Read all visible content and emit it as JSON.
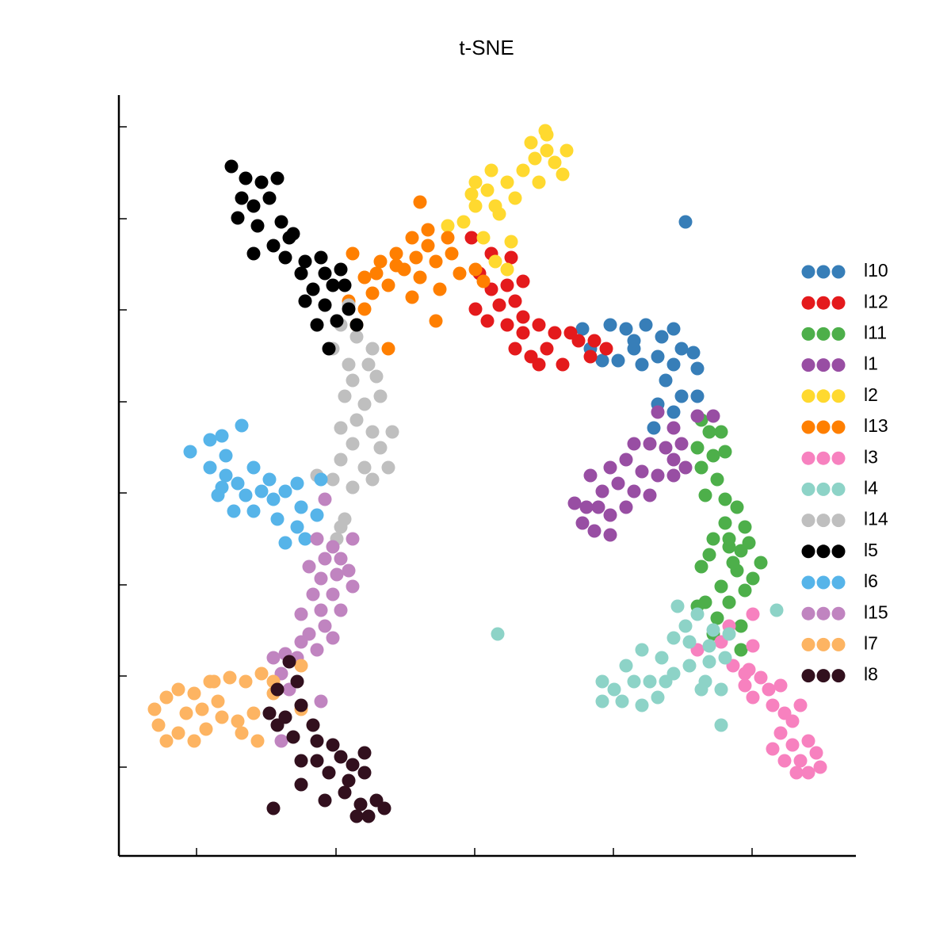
{
  "chart_data": {
    "type": "scatter",
    "title": "t-SNE",
    "xlim": [
      150,
      1080
    ],
    "ylim": [
      120,
      1080
    ],
    "xticks": [
      248,
      424,
      599,
      774,
      949
    ],
    "yticks": [
      232,
      347,
      462,
      578,
      693,
      809,
      924,
      1040
    ],
    "legend": "right",
    "series": [
      {
        "name": "l10",
        "color": "#377eb8",
        "x": [
          735,
          770,
          790,
          815,
          850,
          835,
          800,
          780,
          760,
          830,
          850,
          860,
          875,
          880,
          840,
          860,
          880,
          850,
          830,
          865,
          825,
          800,
          745,
          810
        ],
        "y": [
          785,
          790,
          785,
          790,
          785,
          775,
          760,
          745,
          745,
          750,
          740,
          760,
          755,
          735,
          720,
          700,
          700,
          680,
          690,
          920,
          660,
          770,
          760,
          740
        ]
      },
      {
        "name": "l12",
        "color": "#e41a1c",
        "x": [
          595,
          620,
          645,
          605,
          620,
          640,
          660,
          630,
          615,
          640,
          660,
          680,
          700,
          720,
          690,
          710,
          730,
          750,
          745,
          650,
          670,
          600,
          650,
          680,
          765,
          660
        ],
        "y": [
          900,
          880,
          875,
          855,
          835,
          840,
          845,
          815,
          795,
          790,
          800,
          790,
          780,
          780,
          760,
          740,
          770,
          770,
          750,
          760,
          750,
          810,
          820,
          740,
          760,
          780
        ]
      },
      {
        "name": "l11",
        "color": "#4daf4a",
        "x": [
          885,
          895,
          910,
          880,
          900,
          915,
          885,
          905,
          890,
          915,
          930,
          915,
          940,
          900,
          920,
          935,
          960,
          895,
          930,
          950,
          885,
          910,
          940,
          890,
          920,
          880,
          905,
          935,
          900,
          935,
          920,
          945,
          925
        ],
        "y": [
          670,
          655,
          655,
          635,
          625,
          630,
          610,
          595,
          575,
          570,
          560,
          540,
          535,
          520,
          510,
          505,
          490,
          500,
          480,
          470,
          485,
          460,
          455,
          440,
          440,
          435,
          420,
          410,
          400,
          380,
          520,
          515,
          490
        ]
      },
      {
        "name": "l1",
        "color": "#984ea3",
        "x": [
          830,
          850,
          880,
          900,
          860,
          840,
          820,
          800,
          790,
          770,
          745,
          760,
          740,
          725,
          735,
          750,
          770,
          770,
          790,
          800,
          820,
          830,
          850,
          865,
          780,
          755,
          810,
          850
        ],
        "y": [
          680,
          660,
          675,
          675,
          640,
          635,
          640,
          640,
          620,
          610,
          600,
          580,
          560,
          565,
          540,
          530,
          525,
          550,
          560,
          580,
          575,
          600,
          600,
          610,
          590,
          560,
          605,
          620
        ]
      },
      {
        "name": "l2",
        "color": "#ffd92f",
        "x": [
          565,
          585,
          600,
          595,
          615,
          620,
          640,
          660,
          675,
          690,
          700,
          715,
          690,
          670,
          650,
          630,
          645,
          610,
          625,
          640,
          710,
          600,
          625,
          680,
          688
        ],
        "y": [
          915,
          920,
          940,
          955,
          960,
          985,
          970,
          985,
          1000,
          1010,
          995,
          1010,
          1030,
          1020,
          950,
          930,
          895,
          900,
          870,
          860,
          980,
          970,
          940,
          970,
          1035
        ]
      },
      {
        "name": "l13",
        "color": "#ff7f00",
        "x": [
          445,
          460,
          480,
          500,
          520,
          540,
          530,
          510,
          530,
          550,
          570,
          555,
          520,
          490,
          470,
          460,
          450,
          490,
          550,
          580,
          600,
          610,
          500,
          540,
          565,
          440,
          475,
          525
        ],
        "y": [
          880,
          850,
          870,
          880,
          900,
          890,
          945,
          860,
          850,
          870,
          880,
          835,
          825,
          840,
          830,
          810,
          790,
          760,
          795,
          855,
          860,
          845,
          865,
          910,
          900,
          820,
          855,
          875
        ]
      },
      {
        "name": "l3",
        "color": "#f781bf",
        "x": [
          950,
          920,
          910,
          950,
          925,
          945,
          960,
          970,
          985,
          950,
          940,
          975,
          990,
          1010,
          1000,
          985,
          1000,
          1020,
          1030,
          1010,
          990,
          975,
          1035,
          1005,
          1020,
          880,
          940
        ],
        "y": [
          425,
          410,
          390,
          385,
          360,
          355,
          345,
          330,
          335,
          320,
          350,
          310,
          300,
          310,
          290,
          275,
          260,
          265,
          250,
          240,
          240,
          255,
          232,
          225,
          225,
          380,
          335
        ]
      },
      {
        "name": "l4",
        "color": "#8dd3c7",
        "x": [
          855,
          880,
          865,
          900,
          920,
          850,
          870,
          895,
          915,
          810,
          835,
          790,
          800,
          760,
          775,
          760,
          785,
          810,
          830,
          840,
          870,
          890,
          910,
          885,
          980,
          910,
          628,
          895,
          820,
          850
        ],
        "y": [
          435,
          425,
          410,
          405,
          400,
          395,
          390,
          385,
          370,
          380,
          370,
          360,
          340,
          340,
          330,
          315,
          315,
          310,
          320,
          340,
          360,
          340,
          330,
          330,
          430,
          285,
          400,
          365,
          340,
          350
        ]
      },
      {
        "name": "l14",
        "color": "#bfbfbf",
        "x": [
          440,
          430,
          450,
          470,
          420,
          440,
          465,
          445,
          475,
          435,
          460,
          480,
          450,
          430,
          470,
          495,
          445,
          480,
          430,
          460,
          490,
          420,
          445,
          470,
          400,
          435,
          430,
          425
        ],
        "y": [
          815,
          790,
          775,
          760,
          760,
          740,
          740,
          720,
          725,
          700,
          690,
          700,
          670,
          660,
          655,
          655,
          640,
          635,
          620,
          610,
          610,
          595,
          585,
          595,
          600,
          545,
          535,
          520
        ]
      },
      {
        "name": "l5",
        "color": "#000000",
        "x": [
          292,
          310,
          330,
          350,
          305,
          320,
          340,
          300,
          325,
          355,
          370,
          345,
          320,
          360,
          385,
          405,
          380,
          410,
          430,
          395,
          420,
          385,
          410,
          440,
          400,
          425,
          450,
          415,
          435,
          365
        ],
        "y": [
          990,
          975,
          970,
          975,
          950,
          940,
          950,
          925,
          915,
          920,
          905,
          890,
          880,
          875,
          870,
          875,
          855,
          855,
          860,
          835,
          840,
          820,
          815,
          810,
          790,
          795,
          790,
          760,
          840,
          900
        ]
      },
      {
        "name": "l6",
        "color": "#56b4e9",
        "x": [
          240,
          265,
          280,
          305,
          285,
          265,
          285,
          320,
          300,
          275,
          310,
          330,
          345,
          360,
          375,
          405,
          295,
          320,
          350,
          380,
          400,
          375,
          385,
          360,
          280,
          340
        ],
        "y": [
          630,
          645,
          650,
          663,
          625,
          610,
          600,
          610,
          590,
          575,
          575,
          580,
          570,
          580,
          590,
          595,
          555,
          555,
          545,
          560,
          550,
          535,
          520,
          515,
          585,
          595
        ]
      },
      {
        "name": "l15",
        "color": "#c084c0",
        "x": [
          410,
          400,
          420,
          445,
          430,
          410,
          390,
          405,
          425,
          445,
          420,
          395,
          380,
          405,
          430,
          410,
          390,
          420,
          400,
          375,
          380,
          360,
          345,
          355,
          365,
          405,
          440,
          355
        ],
        "y": [
          570,
          520,
          510,
          520,
          495,
          495,
          485,
          470,
          475,
          460,
          450,
          450,
          425,
          430,
          430,
          410,
          400,
          395,
          380,
          370,
          390,
          375,
          370,
          350,
          330,
          315,
          480,
          265
        ]
      },
      {
        "name": "l7",
        "color": "#fdb462",
        "x": [
          195,
          210,
          225,
          245,
          265,
          290,
          310,
          330,
          345,
          200,
          225,
          245,
          260,
          280,
          300,
          320,
          305,
          325,
          345,
          235,
          255,
          275,
          210,
          270,
          380,
          380
        ],
        "y": [
          305,
          320,
          330,
          325,
          340,
          345,
          340,
          350,
          340,
          285,
          275,
          265,
          280,
          295,
          290,
          300,
          275,
          265,
          325,
          300,
          305,
          315,
          265,
          340,
          360,
          305
        ]
      },
      {
        "name": "l8",
        "color": "#32101e",
        "x": [
          365,
          375,
          350,
          380,
          340,
          360,
          395,
          370,
          400,
          420,
          380,
          400,
          430,
          445,
          460,
          415,
          440,
          460,
          380,
          410,
          435,
          455,
          475,
          485,
          450,
          465,
          345,
          350
        ],
        "y": [
          365,
          340,
          330,
          310,
          300,
          295,
          285,
          270,
          265,
          260,
          240,
          240,
          245,
          235,
          250,
          225,
          215,
          225,
          210,
          190,
          200,
          185,
          190,
          180,
          170,
          170,
          180,
          285
        ]
      }
    ]
  }
}
